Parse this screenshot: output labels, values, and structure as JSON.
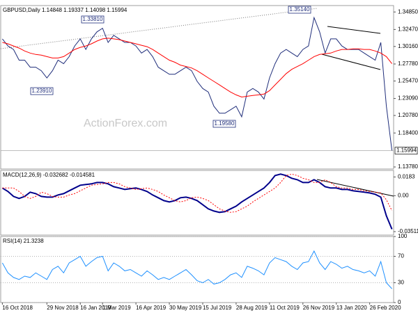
{
  "chart_data": [
    {
      "type": "line",
      "title": "GBPUSD,Daily  1.14848 1.19337 1.14098 1.15994",
      "watermark": "ActionForex.com",
      "annotations": [
        "1.33810",
        "1.23910",
        "1.19580",
        "1.35140"
      ],
      "last_price": 1.15994,
      "xlim": [
        -0.3,
        70.3
      ],
      "ylim": [
        1.135,
        1.3572
      ],
      "grid": false,
      "yticks": [
        {
          "value": 1.3485,
          "label": "1.34850"
        },
        {
          "value": 1.3247,
          "label": "1.32470"
        },
        {
          "value": 1.3016,
          "label": "1.30160"
        },
        {
          "value": 1.2778,
          "label": "1.27780"
        },
        {
          "value": 1.2547,
          "label": "1.25470"
        },
        {
          "value": 1.2309,
          "label": "1.23090"
        },
        {
          "value": 1.2078,
          "label": "1.20780"
        },
        {
          "value": 1.184,
          "label": "1.18400"
        },
        {
          "value": 1.1378,
          "label": "1.13780"
        }
      ],
      "series": [
        {
          "color": "#1f2d7a",
          "values": [
            1.3119,
            1.3023,
            1.2975,
            1.283,
            1.283,
            1.2734,
            1.2734,
            1.2686,
            1.2589,
            1.2686,
            1.283,
            1.2782,
            1.2878,
            1.3023,
            1.3119,
            1.2975,
            1.3119,
            1.3215,
            1.3264,
            1.3071,
            1.3167,
            1.3119,
            1.3071,
            1.3071,
            1.3023,
            1.2926,
            1.2975,
            1.2878,
            1.2734,
            1.2686,
            1.2638,
            1.2638,
            1.2686,
            1.2734,
            1.2686,
            1.2541,
            1.2445,
            1.2397,
            1.2204,
            1.2108,
            1.2108,
            1.2156,
            1.2204,
            1.206,
            1.2397,
            1.2445,
            1.2397,
            1.2301,
            1.2589,
            1.2782,
            1.2926,
            1.2975,
            1.2926,
            1.2878,
            1.2975,
            1.3023,
            1.3408,
            1.3215,
            1.2926,
            1.3119,
            1.3119,
            1.3023,
            1.2975,
            1.2975,
            1.2975,
            1.2926,
            1.2878,
            1.283,
            1.3071,
            1.2204,
            1.1599
          ]
        },
        {
          "color": "#ff0000",
          "values": [
            1.3071,
            1.3052,
            1.3023,
            1.2994,
            1.2955,
            1.2926,
            1.2907,
            1.2898,
            1.2878,
            1.2859,
            1.2859,
            1.2878,
            1.2926,
            1.2975,
            1.3004,
            1.3023,
            1.3052,
            1.309,
            1.3119,
            1.3129,
            1.3119,
            1.3109,
            1.309,
            1.3071,
            1.3052,
            1.3032,
            1.3013,
            1.2975,
            1.2926,
            1.2878,
            1.283,
            1.2801,
            1.2763,
            1.2744,
            1.2724,
            1.2686,
            1.2638,
            1.2589,
            1.2541,
            1.2493,
            1.2445,
            1.2397,
            1.2358,
            1.2329,
            1.2339,
            1.2349,
            1.2358,
            1.2368,
            1.2416,
            1.2493,
            1.257,
            1.2647,
            1.2705,
            1.2744,
            1.2782,
            1.283,
            1.2878,
            1.2907,
            1.2917,
            1.2926,
            1.2955,
            1.2975,
            1.2975,
            1.2984,
            1.2984,
            1.2975,
            1.2975,
            1.2955,
            1.2926,
            1.2878,
            1.2782
          ]
        }
      ]
    },
    {
      "type": "line",
      "title": "MACD(12,26,9) -0.032682 -0.014581",
      "xlim": [
        -0.3,
        70.3
      ],
      "ylim": [
        -0.0385,
        0.0247
      ],
      "grid": false,
      "yticks": [
        0.0183,
        {
          "value": 0,
          "label": "0.00"
        },
        -0.03511
      ],
      "series": [
        {
          "color": "#00008b",
          "values": [
            0.0075,
            0.0041,
            -0.0007,
            -0.0027,
            -0.0007,
            0.0034,
            0.002,
            -0.0007,
            -0.0014,
            -0.0014,
            0.0007,
            0.002,
            0.0048,
            0.0075,
            0.0102,
            0.0109,
            0.0116,
            0.0129,
            0.0129,
            0.0116,
            0.0088,
            0.0075,
            0.0061,
            0.0068,
            0.0075,
            0.0061,
            0.0041,
            0.0007,
            -0.002,
            -0.0048,
            -0.0061,
            -0.0048,
            -0.002,
            -0.0014,
            -0.0027,
            -0.0048,
            -0.0088,
            -0.0129,
            -0.015,
            -0.0163,
            -0.0156,
            -0.0129,
            -0.0102,
            -0.0061,
            -0.0027,
            0.0007,
            0.0041,
            0.0075,
            0.0129,
            0.0197,
            0.0211,
            0.0197,
            0.017,
            0.0156,
            0.0129,
            0.0129,
            0.0156,
            0.0129,
            0.0088,
            0.0075,
            0.0075,
            0.0061,
            0.0061,
            0.0048,
            0.0041,
            0.0034,
            0.0027,
            0.0014,
            -0.0014,
            -0.0197,
            -0.0327
          ]
        },
        {
          "color": "#ff0000",
          "dash": true,
          "values": [
            0.0075,
            0.0075,
            0.0075,
            0.0041,
            -0.0007,
            -0.0027,
            -0.0007,
            0.0034,
            0.002,
            -0.0007,
            -0.0014,
            -0.0014,
            0.0007,
            0.002,
            0.0048,
            0.0075,
            0.0102,
            0.0109,
            0.0116,
            0.0129,
            0.0129,
            0.0116,
            0.0088,
            0.0075,
            0.0061,
            0.0068,
            0.0075,
            0.0061,
            0.0041,
            0.0007,
            -0.002,
            -0.0048,
            -0.0061,
            -0.0048,
            -0.002,
            -0.0014,
            -0.0027,
            -0.0048,
            -0.0088,
            -0.0129,
            -0.015,
            -0.0163,
            -0.0156,
            -0.0129,
            -0.0102,
            -0.0061,
            -0.0027,
            0.0007,
            0.0041,
            0.0075,
            0.0129,
            0.0197,
            0.0211,
            0.0197,
            0.017,
            0.0156,
            0.0129,
            0.0129,
            0.0156,
            0.0129,
            0.0088,
            0.0075,
            0.0075,
            0.0061,
            0.0061,
            0.0048,
            0.0041,
            0.0034,
            0.0027,
            -0.004,
            -0.0146
          ]
        }
      ]
    },
    {
      "type": "line",
      "title": "RSI(14) 21.3238",
      "xlim": [
        -0.3,
        70.3
      ],
      "ylim": [
        0,
        100
      ],
      "grid": true,
      "yticks": [
        100,
        70,
        30,
        0
      ],
      "xticks": [
        {
          "value": 0,
          "label": "16 Oct 2018"
        },
        {
          "value": 8,
          "label": "29 Nov 2018"
        },
        {
          "value": 14,
          "label": "16 Jan 2019"
        },
        {
          "value": 18,
          "label": "1 Mar 2019"
        },
        {
          "value": 24,
          "label": "16 Apr 2019"
        },
        {
          "value": 30,
          "label": "30 May 2019"
        },
        {
          "value": 36,
          "label": "15 Jul 2019"
        },
        {
          "value": 42,
          "label": "28 Aug 2019"
        },
        {
          "value": 48,
          "label": "11 Oct 2019"
        },
        {
          "value": 54,
          "label": "26 Nov 2019"
        },
        {
          "value": 60,
          "label": "13 Jan 2020"
        },
        {
          "value": 66,
          "label": "26 Feb 2020"
        }
      ],
      "series": [
        {
          "color": "#1e90ff",
          "values": [
            60,
            45,
            38,
            35,
            40,
            38,
            45,
            40,
            35,
            50,
            55,
            45,
            60,
            65,
            70,
            55,
            62,
            68,
            70,
            48,
            60,
            55,
            48,
            50,
            45,
            40,
            48,
            42,
            35,
            38,
            35,
            40,
            45,
            50,
            42,
            33,
            30,
            35,
            28,
            30,
            35,
            42,
            45,
            38,
            55,
            52,
            48,
            42,
            60,
            68,
            65,
            62,
            55,
            50,
            60,
            62,
            78,
            60,
            50,
            62,
            58,
            52,
            55,
            50,
            48,
            45,
            48,
            40,
            62,
            30,
            21
          ]
        }
      ]
    }
  ]
}
